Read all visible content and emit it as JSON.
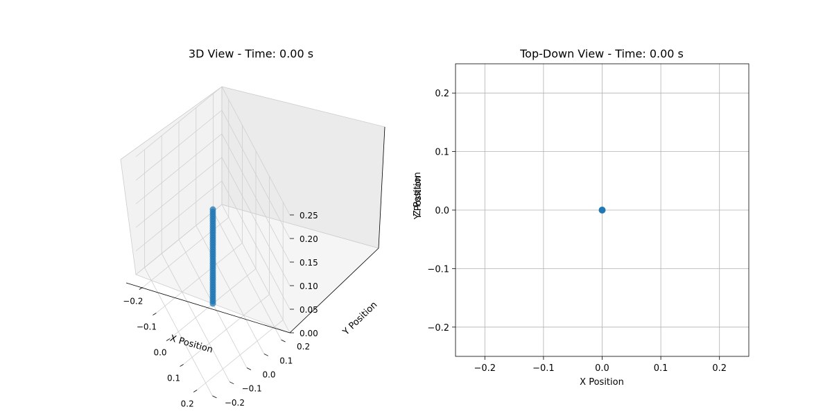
{
  "chart_data": [
    {
      "type": "scatter",
      "view": "3d",
      "title": "3D View - Time: 0.00 s",
      "xlabel": "X Position",
      "ylabel": "Y Position",
      "zlabel": "Z Position",
      "xlim": [
        -0.25,
        0.25
      ],
      "ylim": [
        -0.25,
        0.25
      ],
      "zlim": [
        0,
        0.25
      ],
      "xticks": [
        -0.2,
        -0.1,
        0.0,
        0.1,
        0.2
      ],
      "xtick_labels": [
        "−0.2",
        "−0.1",
        "0.0",
        "0.1",
        "0.2"
      ],
      "yticks": [
        -0.2,
        -0.1,
        0.0,
        0.1,
        0.2
      ],
      "ytick_labels": [
        "−0.2",
        "−0.1",
        "0.0",
        "0.1",
        "0.2"
      ],
      "zticks": [
        0.0,
        0.05,
        0.1,
        0.15,
        0.2,
        0.25
      ],
      "ztick_labels": [
        "0.00",
        "0.05",
        "0.10",
        "0.15",
        "0.20",
        "0.25"
      ],
      "grid": true,
      "color": "#1f77b4",
      "series": [
        {
          "x": 0.0,
          "y": 0.0,
          "z_range": [
            0.0,
            0.2
          ],
          "z_step": 0.005
        }
      ]
    },
    {
      "type": "scatter",
      "view": "top-down",
      "title": "Top-Down View - Time: 0.00 s",
      "xlabel": "X Position",
      "ylabel": "Y Position",
      "xlim": [
        -0.25,
        0.25
      ],
      "ylim": [
        -0.25,
        0.25
      ],
      "xticks": [
        -0.2,
        -0.1,
        0.0,
        0.1,
        0.2
      ],
      "xtick_labels": [
        "−0.2",
        "−0.1",
        "0.0",
        "0.1",
        "0.2"
      ],
      "yticks": [
        -0.2,
        -0.1,
        0.0,
        0.1,
        0.2
      ],
      "ytick_labels": [
        "−0.2",
        "−0.1",
        "0.0",
        "0.1",
        "0.2"
      ],
      "grid": true,
      "color": "#1f77b4",
      "points": [
        {
          "x": 0.0,
          "y": 0.0
        }
      ]
    }
  ]
}
